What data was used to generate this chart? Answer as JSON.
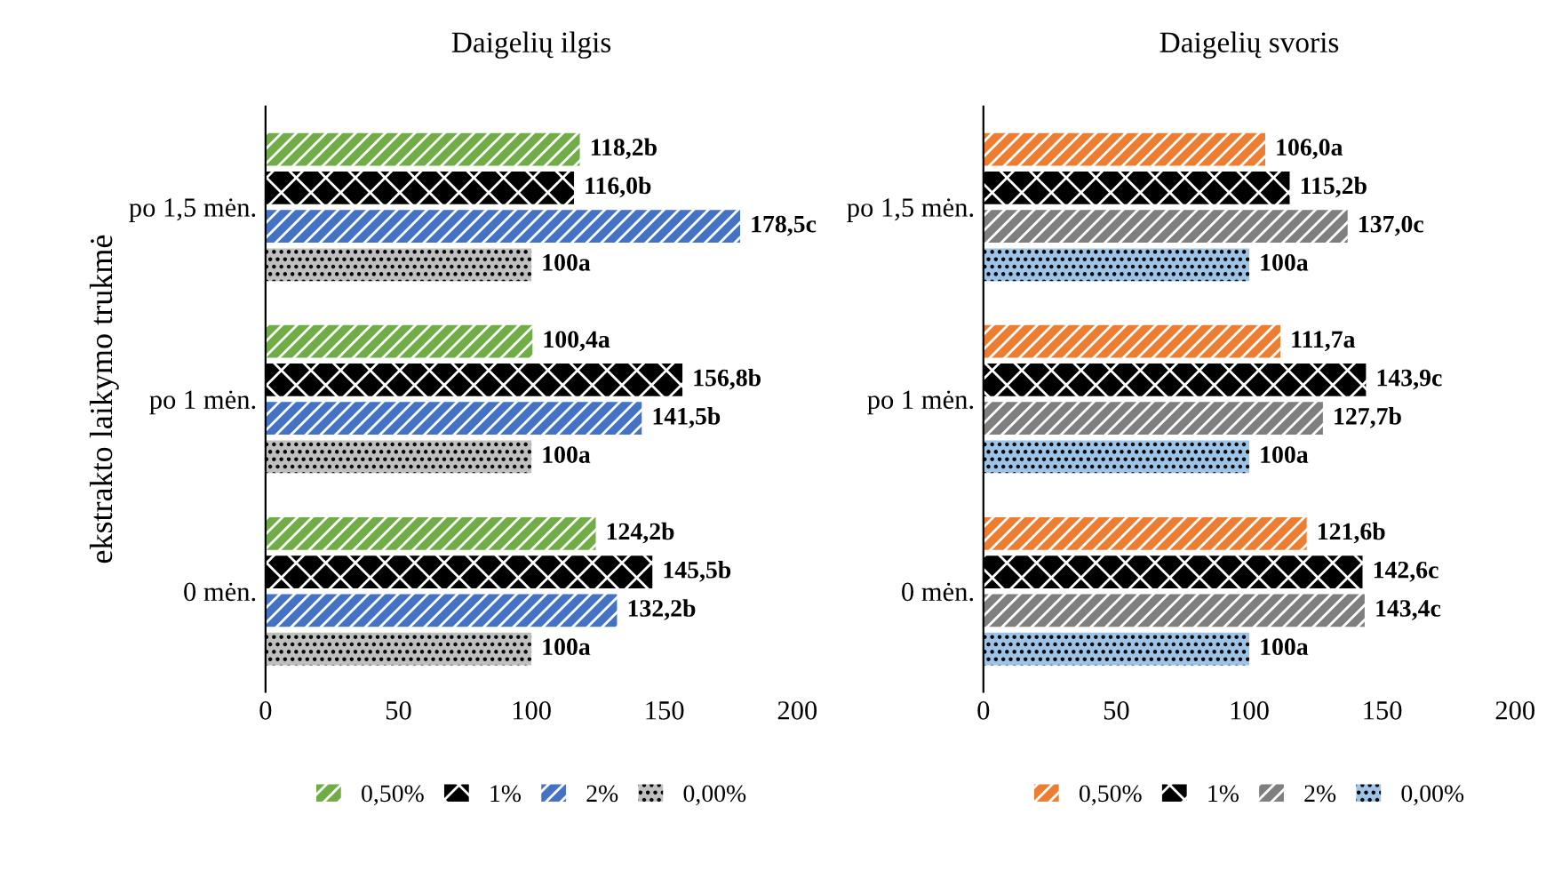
{
  "chart_data": [
    {
      "type": "bar",
      "orientation": "horizontal",
      "title": "Daigelių ilgis",
      "ylabel": "ekstrakto laikymo trukmė",
      "categories": [
        "po 1,5 mėn.",
        "po 1 mėn.",
        "0 mėn."
      ],
      "xlim": [
        0,
        200
      ],
      "xticks": [
        0,
        50,
        100,
        150,
        200
      ],
      "legend": "bottom",
      "series": [
        {
          "name": "0,50%",
          "color": "#70ad47",
          "values": [
            118.2,
            100.4,
            124.2
          ],
          "value_labels": [
            "118,2b",
            "100,4a",
            "124,2b"
          ]
        },
        {
          "name": "1%",
          "color": "#000000",
          "values": [
            116.0,
            156.8,
            145.5
          ],
          "value_labels": [
            "116,0b",
            "156,8b",
            "145,5b"
          ]
        },
        {
          "name": "2%",
          "color": "#4472c4",
          "values": [
            178.5,
            141.5,
            132.2
          ],
          "value_labels": [
            "178,5c",
            "141,5b",
            "132,2b"
          ]
        },
        {
          "name": "0,00%",
          "color": "#bfbfbf",
          "values": [
            100,
            100,
            100
          ],
          "value_labels": [
            "100a",
            "100a",
            "100a"
          ]
        }
      ]
    },
    {
      "type": "bar",
      "orientation": "horizontal",
      "title": "Daigelių svoris",
      "categories": [
        "po 1,5 mėn.",
        "po 1 mėn.",
        "0 mėn."
      ],
      "xlim": [
        0,
        200
      ],
      "xticks": [
        0,
        50,
        100,
        150,
        200
      ],
      "legend": "bottom",
      "series": [
        {
          "name": "0,50%",
          "color": "#ed7d31",
          "values": [
            106.0,
            111.7,
            121.6
          ],
          "value_labels": [
            "106,0a",
            "111,7a",
            "121,6b"
          ]
        },
        {
          "name": "1%",
          "color": "#000000",
          "values": [
            115.2,
            143.9,
            142.6
          ],
          "value_labels": [
            "115,2b",
            "143,9c",
            "142,6c"
          ]
        },
        {
          "name": "2%",
          "color": "#7f7f7f",
          "values": [
            137.0,
            127.7,
            143.4
          ],
          "value_labels": [
            "137,0c",
            "127,7b",
            "143,4c"
          ]
        },
        {
          "name": "0,00%",
          "color": "#9dc3e6",
          "values": [
            100,
            100,
            100
          ],
          "value_labels": [
            "100a",
            "100a",
            "100a"
          ]
        }
      ]
    }
  ]
}
